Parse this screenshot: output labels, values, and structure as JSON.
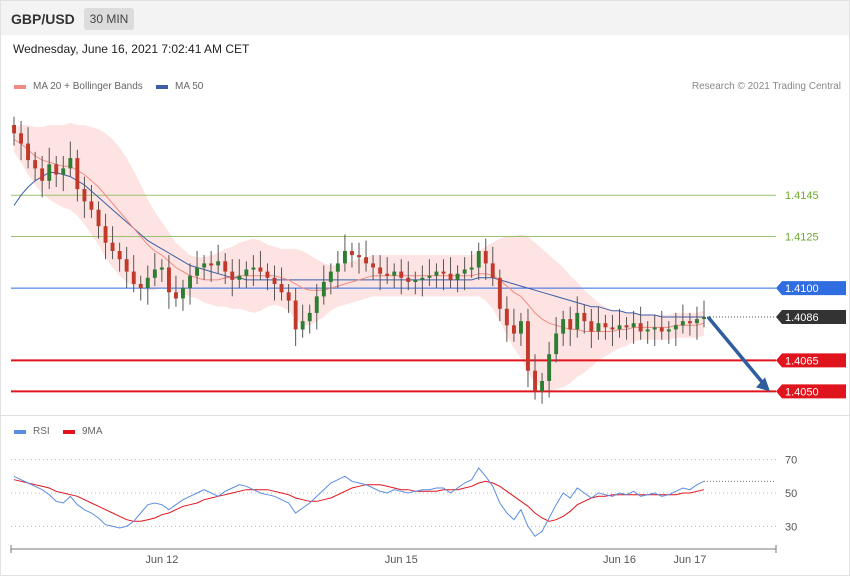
{
  "header": {
    "symbol": "GBP/USD",
    "timeframe": "30 MIN"
  },
  "datetime": "Wednesday, June 16, 2021 7:02:41 AM CET",
  "credit": "Research © 2021 Trading Central",
  "colors": {
    "ma20": "#f08a84",
    "ma50": "#3a5ea8",
    "bollinger_fill": "#fde3e1",
    "bull_candle": "#2e7d32",
    "bear_candle": "#c0392b",
    "resistance_green": "#9ac26a",
    "pivot_blue": "#2f6de1",
    "support_red": "#e0141d",
    "current": "#333333",
    "arrow": "#2f5d9e",
    "rsi": "#5b8de0",
    "rsi_ma": "#e0141d"
  },
  "chart_data": [
    {
      "type": "candlestick",
      "title": "GBP/USD",
      "timeframe": "30 MIN",
      "legend": [
        {
          "name": "MA 20 + Bollinger Bands",
          "color": "#f08a84"
        },
        {
          "name": "MA 50",
          "color": "#3a5ea8"
        }
      ],
      "ylim": [
        1.404,
        1.4195
      ],
      "x_ticks": [
        "Jun 12",
        "Jun 15",
        "Jun 16",
        "Jun 17"
      ],
      "levels": [
        {
          "value": 1.4145,
          "label": "1.4145",
          "kind": "resistance",
          "color": "#6ea82f"
        },
        {
          "value": 1.4125,
          "label": "1.4125",
          "kind": "resistance",
          "color": "#6ea82f"
        },
        {
          "value": 1.41,
          "label": "1.4100",
          "kind": "pivot",
          "color": "#2f6de1"
        },
        {
          "value": 1.4086,
          "label": "1.4086",
          "kind": "current",
          "color": "#333333"
        },
        {
          "value": 1.4065,
          "label": "1.4065",
          "kind": "support",
          "color": "#e0141d"
        },
        {
          "value": 1.405,
          "label": "1.4050",
          "kind": "support",
          "color": "#e0141d"
        }
      ],
      "forecast_arrow": {
        "from": 1.4086,
        "to": 1.405
      },
      "close": [
        1.4175,
        1.417,
        1.4162,
        1.4158,
        1.4152,
        1.416,
        1.4155,
        1.4158,
        1.4163,
        1.4148,
        1.4142,
        1.4138,
        1.413,
        1.4122,
        1.4118,
        1.4114,
        1.4108,
        1.4102,
        1.41,
        1.4105,
        1.4109,
        1.411,
        1.4098,
        1.4095,
        1.41,
        1.4106,
        1.411,
        1.4112,
        1.4111,
        1.4113,
        1.4108,
        1.4104,
        1.4106,
        1.4109,
        1.411,
        1.4108,
        1.4105,
        1.4102,
        1.4098,
        1.4094,
        1.408,
        1.4084,
        1.4088,
        1.4096,
        1.4103,
        1.4108,
        1.4112,
        1.4118,
        1.4116,
        1.4115,
        1.4112,
        1.411,
        1.4107,
        1.4106,
        1.4108,
        1.4105,
        1.4103,
        1.4104,
        1.4105,
        1.4106,
        1.4108,
        1.4107,
        1.4104,
        1.4107,
        1.4109,
        1.411,
        1.4118,
        1.4112,
        1.4105,
        1.409,
        1.4082,
        1.4078,
        1.4084,
        1.406,
        1.405,
        1.4055,
        1.4068,
        1.4078,
        1.4085,
        1.408,
        1.4088,
        1.4084,
        1.4079,
        1.4083,
        1.4081,
        1.408,
        1.4082,
        1.4081,
        1.4083,
        1.4079,
        1.408,
        1.4081,
        1.4079,
        1.408,
        1.4082,
        1.4084,
        1.4083,
        1.4085,
        1.4086
      ],
      "ma20": [
        1.4172,
        1.417,
        1.4167,
        1.4164,
        1.4162,
        1.4161,
        1.416,
        1.4159,
        1.4159,
        1.4157,
        1.4155,
        1.4152,
        1.4149,
        1.4145,
        1.4141,
        1.4137,
        1.4133,
        1.4129,
        1.4125,
        1.4121,
        1.4118,
        1.4116,
        1.4113,
        1.411,
        1.4108,
        1.4106,
        1.4105,
        1.4104,
        1.4104,
        1.4104,
        1.4105,
        1.4105,
        1.4106,
        1.4106,
        1.4106,
        1.4106,
        1.4106,
        1.4106,
        1.4105,
        1.4104,
        1.4102,
        1.41,
        1.4099,
        1.4099,
        1.4099,
        1.41,
        1.4101,
        1.4102,
        1.4103,
        1.4104,
        1.4105,
        1.4106,
        1.4106,
        1.4106,
        1.4106,
        1.4106,
        1.4106,
        1.4106,
        1.4106,
        1.4106,
        1.4106,
        1.4106,
        1.4106,
        1.4106,
        1.4106,
        1.4106,
        1.4107,
        1.4107,
        1.4106,
        1.4104,
        1.4101,
        1.4098,
        1.4096,
        1.4092,
        1.4088,
        1.4085,
        1.4083,
        1.4082,
        1.4081,
        1.408,
        1.408,
        1.4079,
        1.4079,
        1.4079,
        1.4079,
        1.4079,
        1.408,
        1.408,
        1.4081,
        1.4081,
        1.4081,
        1.4081,
        1.4081,
        1.4081,
        1.4082,
        1.4082,
        1.4082,
        1.4082,
        1.4083
      ],
      "ma50": [
        1.414,
        1.4145,
        1.4149,
        1.4152,
        1.4154,
        1.4156,
        1.4156,
        1.4155,
        1.4154,
        1.4152,
        1.415,
        1.4147,
        1.4144,
        1.4141,
        1.4138,
        1.4135,
        1.4132,
        1.4129,
        1.4126,
        1.4123,
        1.4121,
        1.4119,
        1.4117,
        1.4115,
        1.4113,
        1.4111,
        1.411,
        1.4109,
        1.4108,
        1.4107,
        1.4106,
        1.4105,
        1.4105,
        1.4104,
        1.4104,
        1.4104,
        1.4104,
        1.4104,
        1.4104,
        1.4104,
        1.4104,
        1.4104,
        1.4104,
        1.4104,
        1.4104,
        1.4104,
        1.4104,
        1.4104,
        1.4104,
        1.4104,
        1.4104,
        1.4104,
        1.4104,
        1.4104,
        1.4104,
        1.4104,
        1.4104,
        1.4104,
        1.4104,
        1.4104,
        1.4104,
        1.4104,
        1.4104,
        1.4104,
        1.4104,
        1.4104,
        1.4105,
        1.4105,
        1.4105,
        1.4104,
        1.4103,
        1.4102,
        1.4101,
        1.41,
        1.4099,
        1.4098,
        1.4097,
        1.4096,
        1.4095,
        1.4094,
        1.4093,
        1.4092,
        1.4091,
        1.4091,
        1.409,
        1.4089,
        1.4089,
        1.4088,
        1.4088,
        1.4087,
        1.4087,
        1.4087,
        1.4086,
        1.4086,
        1.4086,
        1.4086,
        1.4086,
        1.4086,
        1.4086
      ],
      "bb_width": [
        0.0006,
        0.0009,
        0.0012,
        0.0014,
        0.0016,
        0.0018,
        0.0019,
        0.002,
        0.0021,
        0.0022,
        0.0024,
        0.0026,
        0.0028,
        0.003,
        0.0031,
        0.0031,
        0.003,
        0.0028,
        0.0025,
        0.0022,
        0.0019,
        0.0016,
        0.0014,
        0.0012,
        0.0011,
        0.001,
        0.001,
        0.0011,
        0.0012,
        0.0013,
        0.0014,
        0.0015,
        0.0016,
        0.0017,
        0.0018,
        0.0017,
        0.0015,
        0.0014,
        0.0014,
        0.0015,
        0.0017,
        0.0018,
        0.0017,
        0.0015,
        0.0013,
        0.0011,
        0.001,
        0.001,
        0.001,
        0.001,
        0.001,
        0.001,
        0.001,
        0.001,
        0.001,
        0.001,
        0.001,
        0.001,
        0.001,
        0.001,
        0.001,
        0.001,
        0.001,
        0.001,
        0.001,
        0.001,
        0.0011,
        0.0013,
        0.0016,
        0.002,
        0.0024,
        0.0027,
        0.003,
        0.0033,
        0.0034,
        0.0034,
        0.0033,
        0.0031,
        0.0029,
        0.0026,
        0.0023,
        0.002,
        0.0017,
        0.0014,
        0.0012,
        0.001,
        0.0009,
        0.0008,
        0.0007,
        0.0006,
        0.0006,
        0.0006,
        0.0006,
        0.0006,
        0.0006,
        0.0006,
        0.0006,
        0.0006,
        0.0006
      ]
    },
    {
      "type": "line",
      "title": "",
      "legend": [
        {
          "name": "RSI",
          "color": "#5b8de0"
        },
        {
          "name": "9MA",
          "color": "#e0141d"
        }
      ],
      "ylim": [
        20,
        80
      ],
      "y_ticks": [
        70,
        50,
        30
      ],
      "series": [
        {
          "name": "RSI",
          "values": [
            60,
            58,
            56,
            54,
            52,
            49,
            45,
            44,
            48,
            43,
            40,
            38,
            35,
            31,
            30,
            29,
            30,
            33,
            38,
            43,
            44,
            43,
            40,
            43,
            46,
            48,
            50,
            52,
            50,
            48,
            51,
            53,
            55,
            54,
            52,
            50,
            49,
            48,
            46,
            44,
            38,
            41,
            44,
            48,
            52,
            56,
            58,
            60,
            57,
            56,
            55,
            53,
            51,
            50,
            52,
            51,
            50,
            51,
            52,
            52,
            53,
            53,
            50,
            53,
            56,
            58,
            65,
            60,
            54,
            44,
            38,
            34,
            40,
            30,
            24,
            27,
            35,
            43,
            50,
            47,
            53,
            50,
            47,
            50,
            49,
            48,
            50,
            49,
            51,
            48,
            49,
            50,
            48,
            49,
            51,
            53,
            52,
            55,
            57
          ]
        },
        {
          "name": "9MA",
          "values": [
            58,
            57,
            56,
            55,
            54,
            53,
            51,
            50,
            49,
            48,
            46,
            44,
            42,
            40,
            38,
            36,
            34,
            33,
            33,
            34,
            35,
            37,
            38,
            40,
            42,
            43,
            44,
            46,
            47,
            48,
            49,
            50,
            51,
            52,
            52,
            52,
            52,
            51,
            50,
            49,
            47,
            46,
            45,
            45,
            46,
            47,
            49,
            51,
            53,
            54,
            55,
            55,
            55,
            54,
            53,
            52,
            52,
            51,
            51,
            51,
            51,
            52,
            52,
            52,
            53,
            54,
            56,
            57,
            56,
            54,
            51,
            48,
            45,
            42,
            38,
            35,
            33,
            34,
            36,
            39,
            43,
            45,
            47,
            48,
            48,
            49,
            49,
            49,
            49,
            49,
            49,
            49,
            49,
            49,
            49,
            50,
            50,
            51,
            52
          ]
        }
      ]
    }
  ]
}
